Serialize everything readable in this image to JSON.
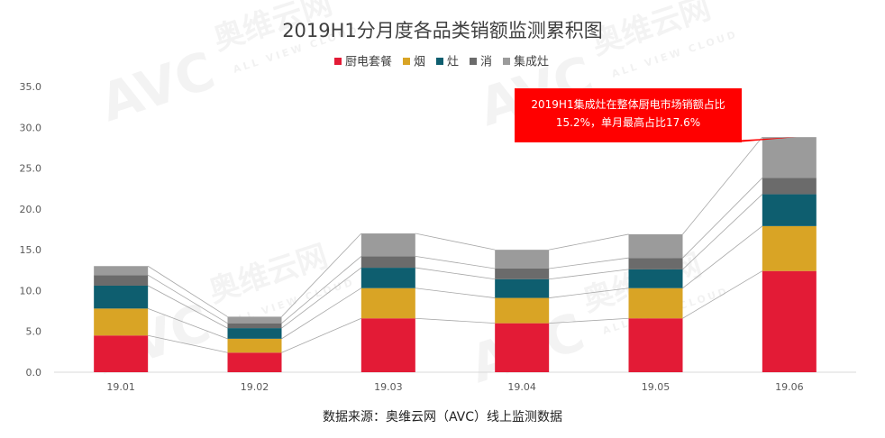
{
  "chart_data": {
    "type": "bar",
    "stacked": true,
    "title": "2019H1分月度各品类销额监测累积图",
    "categories": [
      "19.01",
      "19.02",
      "19.03",
      "19.04",
      "19.05",
      "19.06"
    ],
    "series": [
      {
        "name": "厨电套餐",
        "color": "#e31b36",
        "values": [
          4.5,
          2.4,
          6.6,
          6.0,
          6.6,
          12.4
        ]
      },
      {
        "name": "烟",
        "color": "#d9a425",
        "values": [
          3.3,
          1.7,
          3.7,
          3.1,
          3.7,
          5.5
        ]
      },
      {
        "name": "灶",
        "color": "#0e5e6f",
        "values": [
          2.8,
          1.3,
          2.5,
          2.3,
          2.3,
          3.9
        ]
      },
      {
        "name": "消",
        "color": "#6b6b6b",
        "values": [
          1.3,
          0.6,
          1.4,
          1.3,
          1.4,
          2.0
        ]
      },
      {
        "name": "集成灶",
        "color": "#9b9b9b",
        "values": [
          1.1,
          0.8,
          2.8,
          2.3,
          2.9,
          5.0
        ]
      }
    ],
    "ylim": [
      0,
      35
    ],
    "yticks": [
      "0.0",
      "5.0",
      "10.0",
      "15.0",
      "20.0",
      "25.0",
      "30.0",
      "35.0"
    ],
    "legend_position": "top",
    "grid": false,
    "annotation": {
      "lines": [
        "2019H1集成灶在整体厨电市场销额占比",
        "15.2%，单月最高占比17.6%"
      ],
      "color": "#ff0000",
      "points_to": "19.06"
    }
  },
  "source_note": "数据来源：奥维云网（AVC）线上监测数据",
  "watermark": {
    "brand": "AVC",
    "cn": "奥维云网",
    "en": "ALL VIEW CLOUD"
  }
}
